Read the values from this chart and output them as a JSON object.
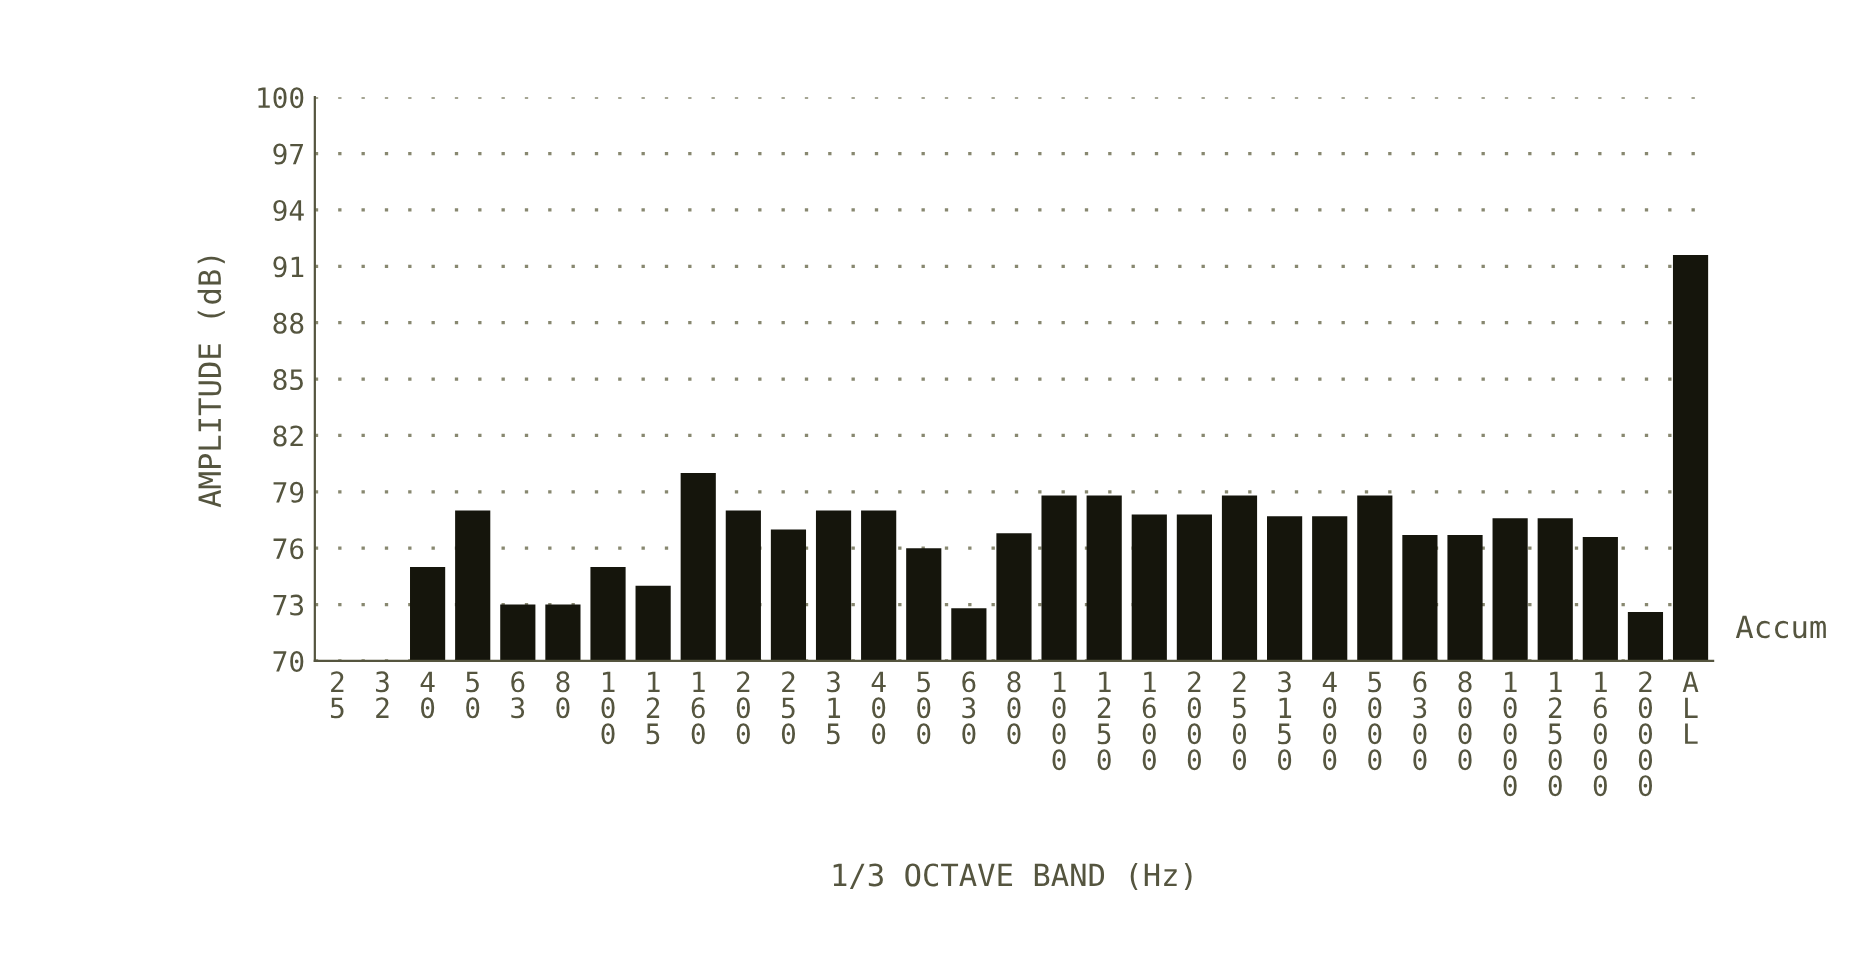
{
  "chart_data": {
    "type": "bar",
    "xlabel": "1/3 OCTAVE BAND (Hz)",
    "ylabel": "AMPLITUDE (dB)",
    "categories": [
      "25",
      "32",
      "40",
      "50",
      "63",
      "80",
      "100",
      "125",
      "160",
      "200",
      "250",
      "315",
      "400",
      "500",
      "630",
      "800",
      "1000",
      "1250",
      "1600",
      "2000",
      "2500",
      "3150",
      "4000",
      "5000",
      "6300",
      "8000",
      "10000",
      "12500",
      "16000",
      "20000",
      "ALL"
    ],
    "values": [
      70,
      70,
      75,
      78,
      73,
      73,
      75,
      74,
      80,
      78,
      77,
      78,
      78,
      76,
      72.8,
      76.8,
      78.8,
      78.8,
      77.8,
      77.8,
      78.8,
      77.7,
      77.7,
      78.8,
      76.7,
      76.7,
      77.6,
      77.6,
      76.6,
      72.6,
      91.6
    ],
    "color": "#15150c",
    "ylim": [
      70,
      100
    ],
    "yticks": [
      70,
      73,
      76,
      79,
      82,
      85,
      88,
      91,
      94,
      97,
      100
    ],
    "grid": "y",
    "annotations": [
      "Accum"
    ]
  }
}
